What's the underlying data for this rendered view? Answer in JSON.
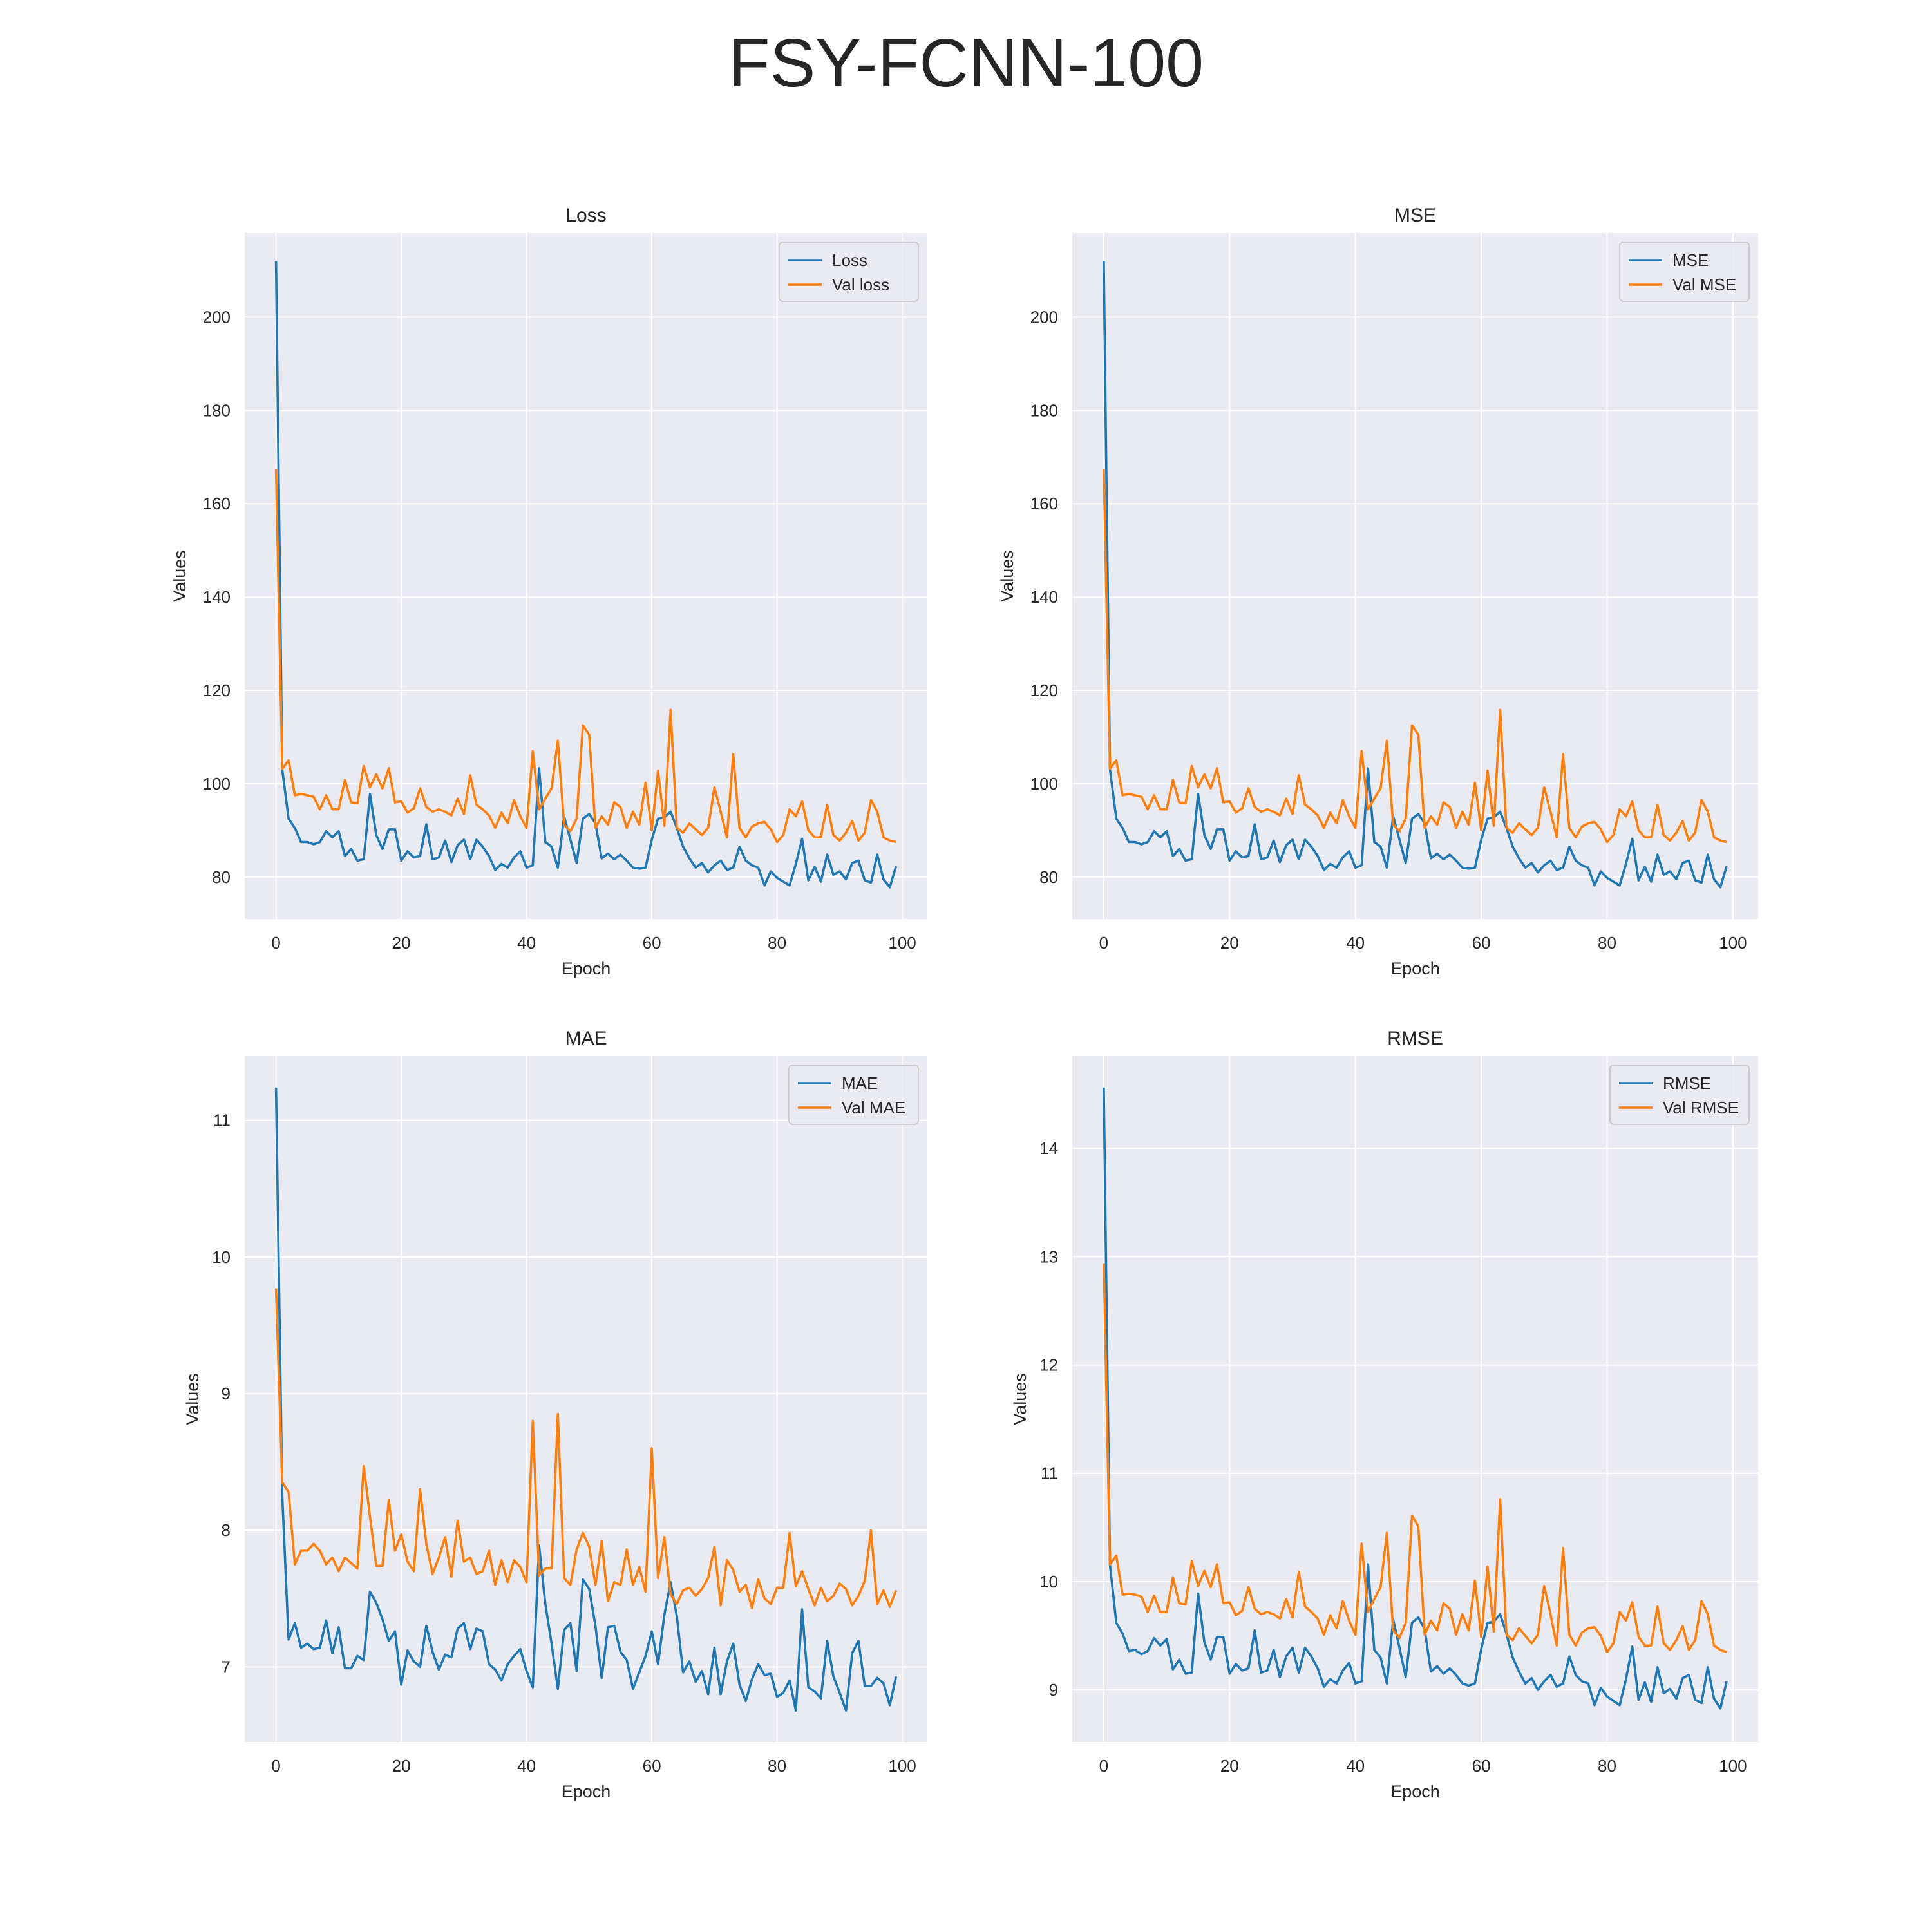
{
  "figure": {
    "title": "FSY-FCNN-100"
  },
  "colors": {
    "train": "#1f77b4",
    "val": "#ff7f0e",
    "plot_bg": "#eaeaf2",
    "grid": "#ffffff",
    "text": "#262626"
  },
  "chart_data": [
    {
      "type": "line",
      "title": "Loss",
      "xlabel": "Epoch",
      "ylabel": "Values",
      "xlim": [
        -5,
        104
      ],
      "ylim": [
        71,
        218
      ],
      "xticks": [
        0,
        20,
        40,
        60,
        80,
        100
      ],
      "yticks": [
        80,
        100,
        120,
        140,
        160,
        180,
        200
      ],
      "grid": true,
      "legend": "top-right",
      "series": [
        {
          "name": "Loss",
          "color": "#1f77b4",
          "values": [
            212.0,
            103.0,
            92.5,
            90.5,
            87.5,
            87.5,
            87.0,
            87.5,
            89.8,
            88.5,
            89.8,
            84.5,
            86.0,
            83.5,
            83.8,
            97.8,
            89.0,
            86.0,
            90.2,
            90.2,
            83.5,
            85.5,
            84.2,
            84.5,
            91.3,
            83.8,
            84.2,
            87.8,
            83.2,
            86.8,
            88.0,
            83.8,
            88.0,
            86.5,
            84.5,
            81.5,
            82.8,
            82.0,
            84.2,
            85.5,
            82.0,
            82.5,
            103.3,
            87.5,
            86.5,
            82.0,
            93.0,
            88.0,
            83.0,
            92.5,
            93.5,
            91.5,
            84.0,
            85.0,
            83.8,
            84.8,
            83.5,
            82.0,
            81.8,
            82.0,
            88.0,
            92.5,
            92.8,
            94.0,
            90.5,
            86.5,
            84.0,
            82.0,
            83.0,
            81.0,
            82.5,
            83.5,
            81.5,
            82.0,
            86.5,
            83.5,
            82.5,
            82.0,
            78.2,
            81.2,
            79.8,
            79.0,
            78.2,
            82.8,
            88.2,
            79.3,
            82.2,
            79.0,
            84.8,
            80.5,
            81.2,
            79.5,
            83.0,
            83.5,
            79.3,
            78.8,
            84.8,
            79.5,
            77.8,
            82.3
          ]
        },
        {
          "name": "Val loss",
          "color": "#ff7f0e",
          "values": [
            167.5,
            103.2,
            105.0,
            97.5,
            97.8,
            97.5,
            97.2,
            94.5,
            97.5,
            94.5,
            94.5,
            100.8,
            96.0,
            95.8,
            103.8,
            99.2,
            102.0,
            99.0,
            103.3,
            96.0,
            96.2,
            93.8,
            94.7,
            99.0,
            95.0,
            94.0,
            94.5,
            94.0,
            93.2,
            96.8,
            93.5,
            101.8,
            95.5,
            94.5,
            93.2,
            90.5,
            93.8,
            91.5,
            96.5,
            93.0,
            90.5,
            107.0,
            94.5,
            96.8,
            99.0,
            109.2,
            91.2,
            89.8,
            92.5,
            112.5,
            110.5,
            90.5,
            93.0,
            91.2,
            96.0,
            95.0,
            90.5,
            94.0,
            91.2,
            100.2,
            90.0,
            102.8,
            91.0,
            115.8,
            90.5,
            89.5,
            91.5,
            90.2,
            89.0,
            90.5,
            99.2,
            94.0,
            88.5,
            106.3,
            90.5,
            88.5,
            90.8,
            91.5,
            91.8,
            90.2,
            87.5,
            89.0,
            94.5,
            93.0,
            96.2,
            90.0,
            88.5,
            88.5,
            95.5,
            89.0,
            87.8,
            89.5,
            92.0,
            87.8,
            89.5,
            96.5,
            94.0,
            88.5,
            87.8,
            87.5
          ]
        }
      ]
    },
    {
      "type": "line",
      "title": "MSE",
      "xlabel": "Epoch",
      "ylabel": "Values",
      "xlim": [
        -5,
        104
      ],
      "ylim": [
        71,
        218
      ],
      "xticks": [
        0,
        20,
        40,
        60,
        80,
        100
      ],
      "yticks": [
        80,
        100,
        120,
        140,
        160,
        180,
        200
      ],
      "grid": true,
      "legend": "top-right",
      "series": [
        {
          "name": "MSE",
          "color": "#1f77b4",
          "values": [
            212.0,
            103.0,
            92.5,
            90.5,
            87.5,
            87.5,
            87.0,
            87.5,
            89.8,
            88.5,
            89.8,
            84.5,
            86.0,
            83.5,
            83.8,
            97.8,
            89.0,
            86.0,
            90.2,
            90.2,
            83.5,
            85.5,
            84.2,
            84.5,
            91.3,
            83.8,
            84.2,
            87.8,
            83.2,
            86.8,
            88.0,
            83.8,
            88.0,
            86.5,
            84.5,
            81.5,
            82.8,
            82.0,
            84.2,
            85.5,
            82.0,
            82.5,
            103.3,
            87.5,
            86.5,
            82.0,
            93.0,
            88.0,
            83.0,
            92.5,
            93.5,
            91.5,
            84.0,
            85.0,
            83.8,
            84.8,
            83.5,
            82.0,
            81.8,
            82.0,
            88.0,
            92.5,
            92.8,
            94.0,
            90.5,
            86.5,
            84.0,
            82.0,
            83.0,
            81.0,
            82.5,
            83.5,
            81.5,
            82.0,
            86.5,
            83.5,
            82.5,
            82.0,
            78.2,
            81.2,
            79.8,
            79.0,
            78.2,
            82.8,
            88.2,
            79.3,
            82.2,
            79.0,
            84.8,
            80.5,
            81.2,
            79.5,
            83.0,
            83.5,
            79.3,
            78.8,
            84.8,
            79.5,
            77.8,
            82.3
          ]
        },
        {
          "name": "Val MSE",
          "color": "#ff7f0e",
          "values": [
            167.5,
            103.2,
            105.0,
            97.5,
            97.8,
            97.5,
            97.2,
            94.5,
            97.5,
            94.5,
            94.5,
            100.8,
            96.0,
            95.8,
            103.8,
            99.2,
            102.0,
            99.0,
            103.3,
            96.0,
            96.2,
            93.8,
            94.7,
            99.0,
            95.0,
            94.0,
            94.5,
            94.0,
            93.2,
            96.8,
            93.5,
            101.8,
            95.5,
            94.5,
            93.2,
            90.5,
            93.8,
            91.5,
            96.5,
            93.0,
            90.5,
            107.0,
            94.5,
            96.8,
            99.0,
            109.2,
            91.2,
            89.8,
            92.5,
            112.5,
            110.5,
            90.5,
            93.0,
            91.2,
            96.0,
            95.0,
            90.5,
            94.0,
            91.2,
            100.2,
            90.0,
            102.8,
            91.0,
            115.8,
            90.5,
            89.5,
            91.5,
            90.2,
            89.0,
            90.5,
            99.2,
            94.0,
            88.5,
            106.3,
            90.5,
            88.5,
            90.8,
            91.5,
            91.8,
            90.2,
            87.5,
            89.0,
            94.5,
            93.0,
            96.2,
            90.0,
            88.5,
            88.5,
            95.5,
            89.0,
            87.8,
            89.5,
            92.0,
            87.8,
            89.5,
            96.5,
            94.0,
            88.5,
            87.8,
            87.5
          ]
        }
      ]
    },
    {
      "type": "line",
      "title": "MAE",
      "xlabel": "Epoch",
      "ylabel": "Values",
      "xlim": [
        -5,
        104
      ],
      "ylim": [
        6.45,
        11.47
      ],
      "xticks": [
        0,
        20,
        40,
        60,
        80,
        100
      ],
      "yticks": [
        7,
        8,
        9,
        10,
        11
      ],
      "grid": true,
      "legend": "top-right",
      "series": [
        {
          "name": "MAE",
          "color": "#1f77b4",
          "values": [
            11.24,
            8.25,
            7.2,
            7.32,
            7.14,
            7.17,
            7.13,
            7.14,
            7.34,
            7.1,
            7.29,
            6.99,
            6.99,
            7.08,
            7.05,
            7.55,
            7.47,
            7.35,
            7.19,
            7.26,
            6.87,
            7.12,
            7.04,
            7.0,
            7.3,
            7.11,
            6.98,
            7.09,
            7.07,
            7.28,
            7.32,
            7.13,
            7.28,
            7.26,
            7.02,
            6.98,
            6.9,
            7.02,
            7.08,
            7.13,
            6.97,
            6.85,
            7.89,
            7.46,
            7.17,
            6.84,
            7.27,
            7.32,
            6.97,
            7.64,
            7.57,
            7.3,
            6.92,
            7.29,
            7.3,
            7.11,
            7.05,
            6.84,
            6.96,
            7.08,
            7.26,
            7.02,
            7.38,
            7.62,
            7.37,
            6.96,
            7.04,
            6.89,
            6.97,
            6.8,
            7.14,
            6.8,
            7.04,
            7.17,
            6.87,
            6.75,
            6.91,
            7.02,
            6.94,
            6.95,
            6.78,
            6.81,
            6.9,
            6.68,
            7.42,
            6.85,
            6.82,
            6.77,
            7.19,
            6.93,
            6.81,
            6.68,
            7.1,
            7.19,
            6.86,
            6.86,
            6.92,
            6.88,
            6.72,
            6.93
          ]
        },
        {
          "name": "Val MAE",
          "color": "#ff7f0e",
          "values": [
            9.77,
            8.35,
            8.28,
            7.75,
            7.85,
            7.85,
            7.9,
            7.85,
            7.75,
            7.8,
            7.7,
            7.8,
            7.76,
            7.72,
            8.47,
            8.1,
            7.74,
            7.74,
            8.22,
            7.85,
            7.97,
            7.77,
            7.7,
            8.3,
            7.9,
            7.68,
            7.8,
            7.95,
            7.66,
            8.07,
            7.77,
            7.8,
            7.68,
            7.7,
            7.85,
            7.6,
            7.78,
            7.62,
            7.78,
            7.73,
            7.62,
            8.8,
            7.67,
            7.72,
            7.72,
            8.85,
            7.65,
            7.6,
            7.86,
            7.98,
            7.88,
            7.6,
            7.92,
            7.48,
            7.62,
            7.6,
            7.86,
            7.6,
            7.73,
            7.55,
            8.6,
            7.65,
            7.95,
            7.53,
            7.46,
            7.56,
            7.58,
            7.52,
            7.57,
            7.65,
            7.88,
            7.45,
            7.78,
            7.71,
            7.55,
            7.6,
            7.43,
            7.64,
            7.5,
            7.46,
            7.58,
            7.58,
            7.98,
            7.59,
            7.7,
            7.57,
            7.45,
            7.58,
            7.48,
            7.52,
            7.61,
            7.57,
            7.45,
            7.52,
            7.63,
            8.0,
            7.46,
            7.56,
            7.44,
            7.56
          ]
        }
      ]
    },
    {
      "type": "line",
      "title": "RMSE",
      "xlabel": "Epoch",
      "ylabel": "Values",
      "xlim": [
        -5,
        104
      ],
      "ylim": [
        8.52,
        14.85
      ],
      "xticks": [
        0,
        20,
        40,
        60,
        80,
        100
      ],
      "yticks": [
        9,
        10,
        11,
        12,
        13,
        14
      ],
      "grid": true,
      "legend": "top-right",
      "series": [
        {
          "name": "RMSE",
          "color": "#1f77b4",
          "values": [
            14.56,
            10.15,
            9.62,
            9.52,
            9.36,
            9.37,
            9.33,
            9.36,
            9.48,
            9.41,
            9.47,
            9.19,
            9.28,
            9.15,
            9.16,
            9.89,
            9.44,
            9.28,
            9.49,
            9.49,
            9.15,
            9.24,
            9.18,
            9.2,
            9.55,
            9.16,
            9.18,
            9.37,
            9.12,
            9.31,
            9.39,
            9.16,
            9.39,
            9.31,
            9.2,
            9.03,
            9.1,
            9.06,
            9.18,
            9.25,
            9.06,
            9.08,
            10.16,
            9.37,
            9.3,
            9.06,
            9.65,
            9.39,
            9.12,
            9.62,
            9.67,
            9.56,
            9.17,
            9.22,
            9.15,
            9.2,
            9.14,
            9.06,
            9.04,
            9.06,
            9.38,
            9.62,
            9.63,
            9.7,
            9.52,
            9.3,
            9.17,
            9.06,
            9.11,
            9.0,
            9.08,
            9.14,
            9.03,
            9.06,
            9.31,
            9.14,
            9.08,
            9.06,
            8.86,
            9.02,
            8.94,
            8.9,
            8.86,
            9.1,
            9.4,
            8.91,
            9.07,
            8.89,
            9.21,
            8.97,
            9.01,
            8.92,
            9.11,
            9.14,
            8.91,
            8.88,
            9.21,
            8.92,
            8.83,
            9.08
          ]
        },
        {
          "name": "Val RMSE",
          "color": "#ff7f0e",
          "values": [
            12.94,
            10.16,
            10.24,
            9.88,
            9.89,
            9.88,
            9.86,
            9.72,
            9.87,
            9.72,
            9.72,
            10.04,
            9.8,
            9.79,
            10.19,
            9.96,
            10.1,
            9.95,
            10.16,
            9.8,
            9.81,
            9.69,
            9.73,
            9.95,
            9.75,
            9.7,
            9.72,
            9.7,
            9.66,
            9.84,
            9.67,
            10.09,
            9.77,
            9.72,
            9.66,
            9.51,
            9.69,
            9.57,
            9.82,
            9.64,
            9.51,
            10.35,
            9.72,
            9.84,
            9.95,
            10.45,
            9.55,
            9.48,
            9.62,
            10.61,
            10.51,
            9.51,
            9.64,
            9.55,
            9.8,
            9.75,
            9.51,
            9.7,
            9.55,
            10.01,
            9.49,
            10.14,
            9.54,
            10.76,
            9.51,
            9.46,
            9.57,
            9.5,
            9.43,
            9.51,
            9.96,
            9.7,
            9.41,
            10.31,
            9.51,
            9.41,
            9.53,
            9.57,
            9.58,
            9.5,
            9.35,
            9.43,
            9.72,
            9.64,
            9.81,
            9.49,
            9.41,
            9.41,
            9.77,
            9.43,
            9.37,
            9.46,
            9.59,
            9.37,
            9.46,
            9.82,
            9.7,
            9.41,
            9.37,
            9.35
          ]
        }
      ]
    }
  ]
}
